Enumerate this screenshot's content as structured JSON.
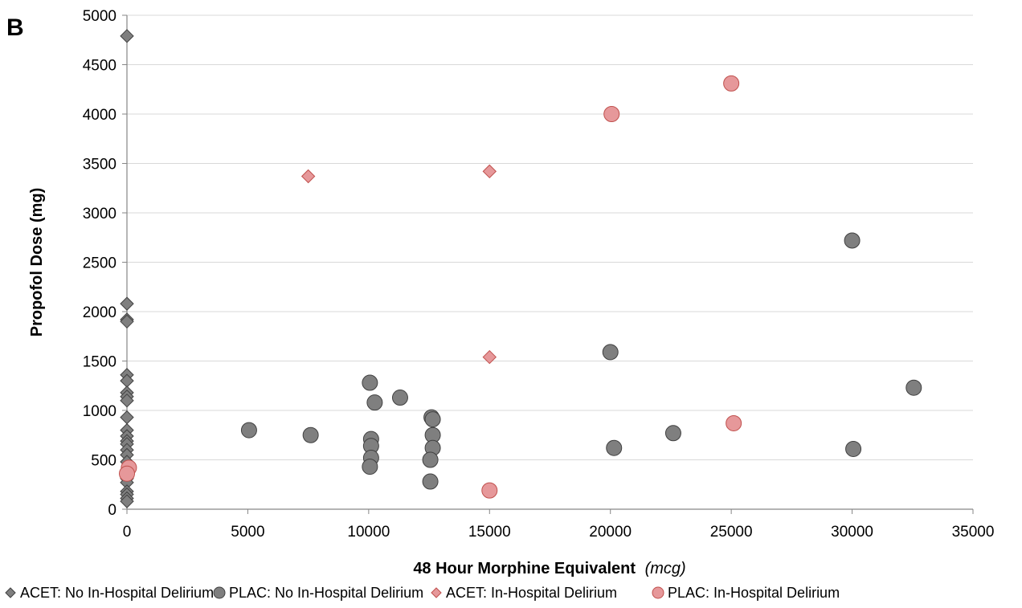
{
  "panel_label": "B",
  "chart_data": {
    "type": "scatter",
    "title": "",
    "xlabel": "48 Hour Morphine Equivalent",
    "xlabel_unit": "(mcg)",
    "ylabel": "Propofol Dose (mg)",
    "xlim": [
      0,
      35000
    ],
    "ylim": [
      0,
      5000
    ],
    "x_ticks": [
      0,
      5000,
      10000,
      15000,
      20000,
      25000,
      30000,
      35000
    ],
    "y_ticks": [
      0,
      500,
      1000,
      1500,
      2000,
      2500,
      3000,
      3500,
      4000,
      4500,
      5000
    ],
    "grid": "horizontal",
    "legend_position": "bottom",
    "series": [
      {
        "name": "ACET: No In-Hospital Delirium",
        "marker": "diamond",
        "color": "#7f7f7f",
        "stroke": "#404040",
        "points": [
          [
            0,
            4790
          ],
          [
            0,
            2080
          ],
          [
            0,
            1920
          ],
          [
            0,
            1900
          ],
          [
            0,
            1360
          ],
          [
            0,
            1300
          ],
          [
            0,
            1180
          ],
          [
            0,
            1140
          ],
          [
            0,
            1100
          ],
          [
            0,
            930
          ],
          [
            0,
            800
          ],
          [
            0,
            740
          ],
          [
            0,
            690
          ],
          [
            0,
            660
          ],
          [
            0,
            600
          ],
          [
            0,
            550
          ],
          [
            0,
            480
          ],
          [
            0,
            400
          ],
          [
            0,
            350
          ],
          [
            0,
            310
          ],
          [
            0,
            270
          ],
          [
            0,
            180
          ],
          [
            0,
            150
          ],
          [
            0,
            110
          ],
          [
            0,
            80
          ]
        ]
      },
      {
        "name": "PLAC: No In-Hospital Delirium",
        "marker": "circle",
        "color": "#7f7f7f",
        "stroke": "#404040",
        "points": [
          [
            5050,
            800
          ],
          [
            7600,
            750
          ],
          [
            10050,
            1280
          ],
          [
            10250,
            1080
          ],
          [
            11300,
            1130
          ],
          [
            10100,
            710
          ],
          [
            10100,
            640
          ],
          [
            10100,
            520
          ],
          [
            10050,
            430
          ],
          [
            12600,
            930
          ],
          [
            12650,
            910
          ],
          [
            12650,
            750
          ],
          [
            12650,
            620
          ],
          [
            12550,
            500
          ],
          [
            12550,
            280
          ],
          [
            20000,
            1590
          ],
          [
            20150,
            620
          ],
          [
            22600,
            770
          ],
          [
            30000,
            2720
          ],
          [
            30050,
            610
          ],
          [
            32550,
            1230
          ]
        ]
      },
      {
        "name": "ACET: In-Hospital Delirium",
        "marker": "diamond",
        "color": "#e6989a",
        "stroke": "#c0504d",
        "points": [
          [
            7500,
            3370
          ],
          [
            15000,
            3420
          ],
          [
            15000,
            1540
          ]
        ]
      },
      {
        "name": "PLAC: In-Hospital Delirium",
        "marker": "circle",
        "color": "#e6989a",
        "stroke": "#c0504d",
        "points": [
          [
            20050,
            4000
          ],
          [
            25000,
            4310
          ],
          [
            25100,
            870
          ],
          [
            15000,
            190
          ],
          [
            80,
            420
          ],
          [
            0,
            360
          ]
        ]
      }
    ]
  }
}
